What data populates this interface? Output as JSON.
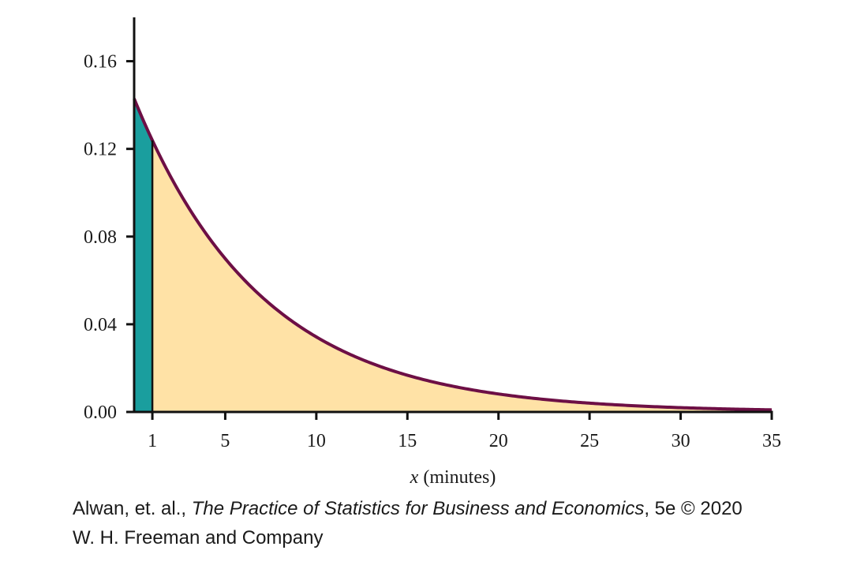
{
  "chart_data": {
    "type": "area",
    "distribution": "exponential",
    "rate": 0.1429,
    "x": [
      0,
      1,
      2,
      3,
      4,
      5,
      6,
      7,
      8,
      9,
      10,
      12,
      14,
      15,
      16,
      18,
      20,
      22,
      24,
      25,
      26,
      28,
      30,
      32,
      34,
      35
    ],
    "y": [
      0.1429,
      0.1238,
      0.1073,
      0.093,
      0.0806,
      0.0699,
      0.0605,
      0.0525,
      0.0455,
      0.0394,
      0.0341,
      0.0256,
      0.0193,
      0.0167,
      0.0145,
      0.0109,
      0.0082,
      0.0061,
      0.0046,
      0.004,
      0.0035,
      0.0026,
      0.002,
      0.0015,
      0.0011,
      0.001
    ],
    "shaded_regions": [
      {
        "from": 0,
        "to": 1,
        "color": "#1a9e9e"
      },
      {
        "from": 1,
        "to": 35,
        "color": "#ffe2a6"
      }
    ],
    "curve_color": "#6d0f45",
    "xlim": [
      0,
      35
    ],
    "ylim": [
      0,
      0.18
    ],
    "x_ticks": [
      1,
      5,
      10,
      15,
      20,
      25,
      30,
      35
    ],
    "x_tick_labels": [
      "1",
      "5",
      "10",
      "15",
      "20",
      "25",
      "30",
      "35"
    ],
    "y_ticks": [
      0,
      0.04,
      0.08,
      0.12,
      0.16
    ],
    "y_tick_labels": [
      "0.00",
      "0.04",
      "0.08",
      "0.12",
      "0.16"
    ],
    "xlabel_var": "x",
    "xlabel_rest": " (minutes)",
    "ylabel": "",
    "title": "",
    "grid": false
  },
  "credit": {
    "authors": "Alwan, et. al., ",
    "book": "The Practice of Statistics for Business and Economics",
    "edition": ", 5e © 2020",
    "publisher": "W. H. Freeman and Company"
  }
}
